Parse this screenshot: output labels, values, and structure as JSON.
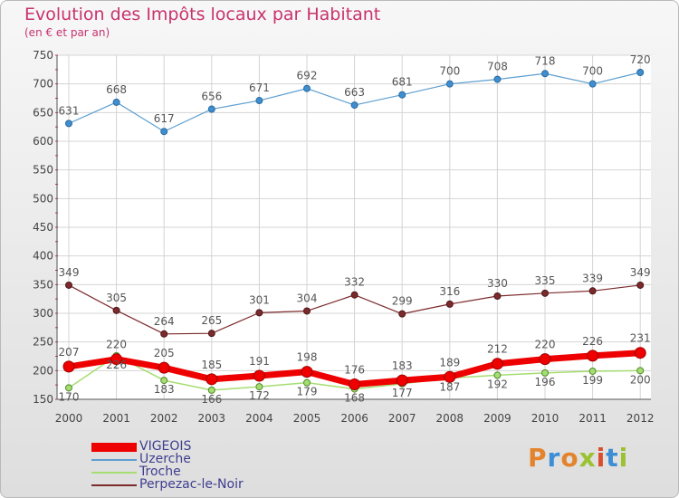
{
  "title": "Evolution des Impôts locaux par Habitant",
  "subtitle": "(en € et par an)",
  "logo_text": "Proxiti",
  "chart_data": {
    "type": "line",
    "title": "Evolution des Impôts locaux par Habitant",
    "subtitle": "(en € et par an)",
    "x": [
      "2000",
      "2001",
      "2002",
      "2003",
      "2004",
      "2005",
      "2006",
      "2007",
      "2008",
      "2009",
      "2010",
      "2011",
      "2012"
    ],
    "ylim": [
      150,
      750
    ],
    "yticks": [
      150,
      200,
      250,
      300,
      350,
      400,
      450,
      500,
      550,
      600,
      650,
      700,
      750
    ],
    "grid": true,
    "legend_position": "bottom-left",
    "series": [
      {
        "name": "VIGEOIS",
        "color": "#ee0000",
        "values": [
          207,
          220,
          205,
          185,
          191,
          198,
          176,
          183,
          189,
          212,
          220,
          226,
          231
        ],
        "labels": [
          "207",
          "220",
          "205",
          "185",
          "191",
          "198",
          "176",
          "183",
          "189",
          "212",
          "220",
          "226",
          "231"
        ]
      },
      {
        "name": "Uzerche",
        "color": "#5e9fd0",
        "values": [
          631,
          668,
          617,
          656,
          671,
          692,
          663,
          681,
          700,
          708,
          718,
          700,
          720
        ],
        "labels": [
          "631",
          "668",
          "617",
          "656",
          "671",
          "692",
          "663",
          "681",
          "700",
          "708",
          "718",
          "700",
          "720"
        ]
      },
      {
        "name": "Troche",
        "color": "#a6dd72",
        "values": [
          170,
          226,
          183,
          166,
          172,
          179,
          168,
          177,
          187,
          192,
          196,
          199,
          200
        ],
        "labels": [
          "170",
          "226",
          "183",
          "166",
          "172",
          "179",
          "168",
          "177",
          "187",
          "192",
          "196",
          "199",
          "200"
        ]
      },
      {
        "name": "Perpezac-le-Noir",
        "color": "#7d2a2c",
        "values": [
          349,
          305,
          264,
          265,
          301,
          304,
          332,
          299,
          316,
          330,
          335,
          339,
          349
        ],
        "labels": [
          "349",
          "305",
          "264",
          "265",
          "301",
          "304",
          "332",
          "299",
          "316",
          "330",
          "335",
          "339",
          "349"
        ]
      }
    ]
  }
}
